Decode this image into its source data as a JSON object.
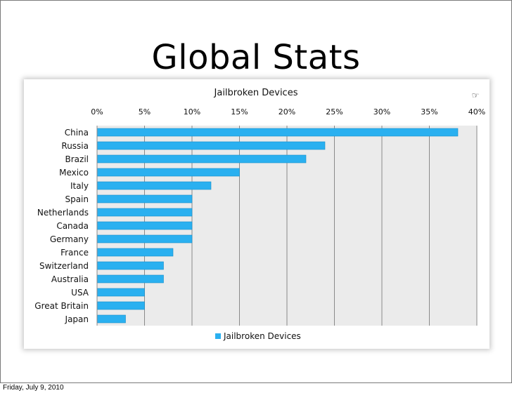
{
  "slide": {
    "title": "Global Stats",
    "footer_date": "Friday, July 9, 2010"
  },
  "chart_data": {
    "type": "bar",
    "orientation": "horizontal",
    "title": "Jailbroken Devices",
    "categories": [
      "China",
      "Russia",
      "Brazil",
      "Mexico",
      "Italy",
      "Spain",
      "Netherlands",
      "Canada",
      "Germany",
      "France",
      "Switzerland",
      "Australia",
      "USA",
      "Great Britain",
      "Japan"
    ],
    "series": [
      {
        "name": "Jailbroken Devices",
        "values": [
          38,
          24,
          22,
          15,
          12,
          10,
          10,
          10,
          10,
          8,
          7,
          7,
          5,
          5,
          3
        ]
      }
    ],
    "xlim": [
      0,
      40
    ],
    "x_ticks": [
      "0%",
      "5%",
      "10%",
      "15%",
      "20%",
      "25%",
      "30%",
      "35%",
      "40%"
    ],
    "x_axis_position": "top",
    "grid": true,
    "legend": "bottom",
    "colors": {
      "bar": "#2ab0f0",
      "bar_edge": "#1b8fca",
      "plot_bg": "#ebebeb",
      "grid": "#8a8a8a"
    }
  }
}
